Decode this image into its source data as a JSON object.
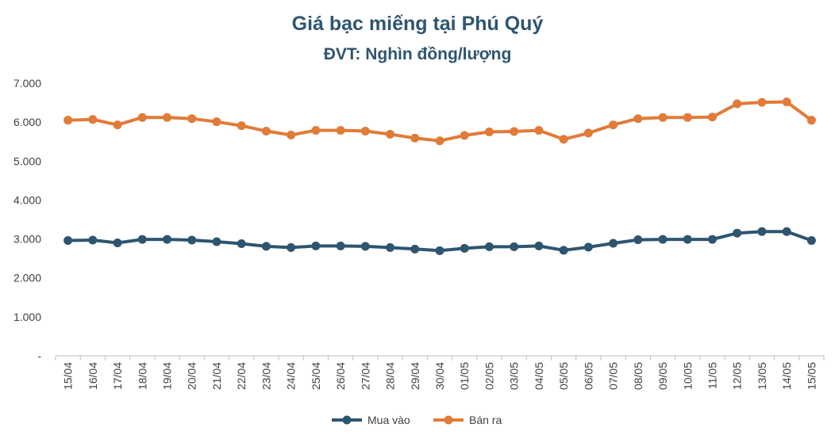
{
  "chart_data": {
    "type": "line",
    "title": "Giá bạc miếng tại Phú Quý",
    "subtitle": "ĐVT: Nghìn đồng/lượng",
    "categories": [
      "15/04",
      "16/04",
      "17/04",
      "18/04",
      "19/04",
      "20/04",
      "21/04",
      "22/04",
      "23/04",
      "24/04",
      "25/04",
      "26/04",
      "27/04",
      "28/04",
      "29/04",
      "30/04",
      "01/05",
      "02/05",
      "03/05",
      "04/05",
      "05/05",
      "06/05",
      "07/05",
      "08/05",
      "09/05",
      "10/05",
      "11/05",
      "12/05",
      "13/05",
      "14/05",
      "15/05"
    ],
    "y_ticks": [
      "-",
      "1.000",
      "2.000",
      "3.000",
      "4.000",
      "5.000",
      "6.000",
      "7.000"
    ],
    "ylim": [
      0,
      7000
    ],
    "grid": false,
    "legend_position": "bottom",
    "series": [
      {
        "name": "Mua vào",
        "color": "#2e5570",
        "values": [
          2960,
          2970,
          2900,
          2990,
          2990,
          2970,
          2930,
          2880,
          2810,
          2780,
          2820,
          2820,
          2810,
          2780,
          2740,
          2700,
          2760,
          2800,
          2800,
          2820,
          2710,
          2790,
          2890,
          2980,
          2990,
          2990,
          2990,
          3150,
          3190,
          3190,
          2960
        ]
      },
      {
        "name": "Bán ra",
        "color": "#e07b39",
        "values": [
          6050,
          6070,
          5930,
          6120,
          6120,
          6090,
          6010,
          5910,
          5770,
          5670,
          5790,
          5790,
          5770,
          5690,
          5590,
          5520,
          5660,
          5750,
          5760,
          5790,
          5560,
          5720,
          5930,
          6090,
          6120,
          6120,
          6130,
          6470,
          6510,
          6520,
          6050
        ]
      }
    ]
  }
}
